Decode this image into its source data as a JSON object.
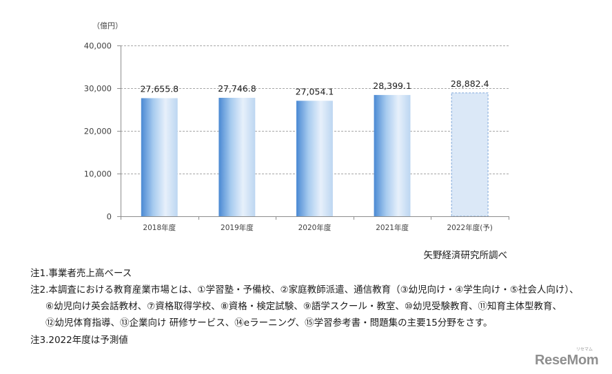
{
  "chart_data": {
    "type": "bar",
    "ylabel": "（億円）",
    "categories": [
      "2018年度",
      "2019年度",
      "2020年度",
      "2021年度",
      "2022年度(予)"
    ],
    "values": [
      27655.8,
      27746.8,
      27054.1,
      28399.1,
      28882.4
    ],
    "value_labels": [
      "27,655.8",
      "27,746.8",
      "27,054.1",
      "28,399.1",
      "28,882.4"
    ],
    "dashed_outline": [
      false,
      false,
      false,
      false,
      true
    ],
    "ylim": [
      0,
      40000
    ],
    "yticks": [
      0,
      10000,
      20000,
      30000,
      40000
    ],
    "ytick_labels": [
      "0",
      "10,000",
      "20,000",
      "30,000",
      "40,000"
    ],
    "grid": true,
    "colors": {
      "bar_gradient": [
        "#4a89d3",
        "#a7cbef",
        "#e7f0fb",
        "#bcd6f1"
      ],
      "forecast_fill": "#dbe8f7",
      "forecast_border": "#7fa7d9"
    }
  },
  "source": "矢野経済研究所調べ",
  "notes": {
    "note1": "注1.事業者売上高ベース",
    "note2_lines": [
      "注2.本調査における教育産業市場とは、①学習塾・予備校、②家庭教師派遣、通信教育（③幼児向け・④学生向け・⑤社会人向け）、",
      "⑥幼児向け英会話教材、⑦資格取得学校、⑧資格・検定試験、⑨語学スクール・教室、⑩幼児受験教育、⑪知育主体型教育、",
      "⑫幼児体育指導、⑬企業向け 研修サービス、⑭eラーニング、⑮学習参考書・問題集の主要15分野をさす。"
    ],
    "note3": "注3.2022年度は予測値"
  },
  "logo": {
    "text": "ReseMom",
    "kana": "リセマム"
  }
}
